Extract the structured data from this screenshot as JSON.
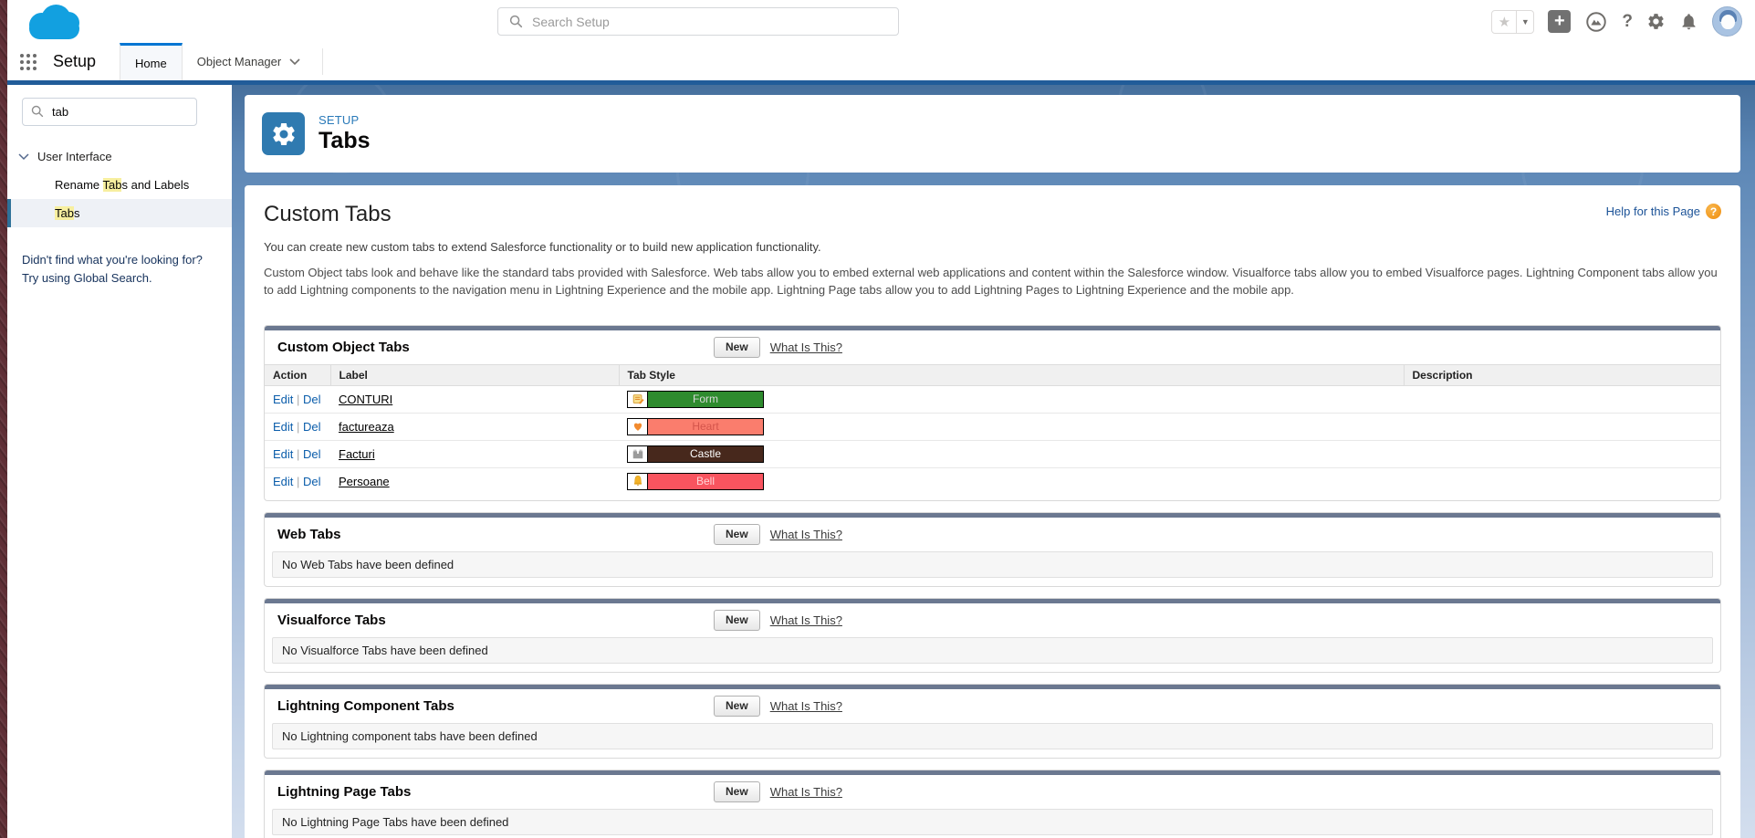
{
  "global_header": {
    "search": {
      "placeholder": "Search Setup"
    },
    "icons": [
      "salesforce-cloud-logo",
      "favorites-star-icon",
      "favorites-caret-icon",
      "add-icon",
      "trailhead-icon",
      "help-icon",
      "setup-gear-icon",
      "notifications-bell-icon",
      "user-avatar"
    ]
  },
  "nav": {
    "app_name": "Setup",
    "tabs": {
      "home": "Home",
      "object_manager": "Object Manager"
    }
  },
  "sidebar": {
    "search_value": "tab",
    "tree": {
      "section_label": "User Interface",
      "items": [
        {
          "pre": "Rename ",
          "hl": "Tab",
          "post": "s and Labels",
          "selected": false
        },
        {
          "pre": "",
          "hl": "Tab",
          "post": "s",
          "selected": true
        }
      ]
    },
    "hint": "Didn't find what you're looking for? Try using Global Search."
  },
  "page_header": {
    "eyebrow": "SETUP",
    "title": "Tabs"
  },
  "content": {
    "help_link": "Help for this Page",
    "help_badge": "?",
    "title": "Custom Tabs",
    "intro1": "You can create new custom tabs to extend Salesforce functionality or to build new application functionality.",
    "intro2": "Custom Object tabs look and behave like the standard tabs provided with Salesforce. Web tabs allow you to embed external web applications and content within the Salesforce window. Visualforce tabs allow you to embed Visualforce pages. Lightning Component tabs allow you to add Lightning components to the navigation menu in Lightning Experience and the mobile app. Lightning Page tabs allow you to add Lightning Pages to Lightning Experience and the mobile app.",
    "sections": [
      {
        "title": "Custom Object Tabs",
        "new_label": "New",
        "what_label": "What Is This?",
        "type": "table",
        "table": {
          "headers": [
            "Action",
            "Label",
            "Tab Style",
            "Description"
          ],
          "rows": [
            {
              "actions": [
                "Edit",
                "Del"
              ],
              "label": "CONTURI",
              "style_name": "Form",
              "style_color": "#2e8b2e",
              "style_text_color": "#d9d9d9",
              "icon": "form-icon",
              "description": ""
            },
            {
              "actions": [
                "Edit",
                "Del"
              ],
              "label": "factureaza",
              "style_name": "Heart",
              "style_color": "#fa7d6d",
              "style_text_color": "#d4544b",
              "icon": "heart-icon",
              "description": ""
            },
            {
              "actions": [
                "Edit",
                "Del"
              ],
              "label": "Facturi",
              "style_name": "Castle",
              "style_color": "#47281c",
              "style_text_color": "#ffffff",
              "icon": "castle-icon",
              "description": ""
            },
            {
              "actions": [
                "Edit",
                "Del"
              ],
              "label": "Persoane",
              "style_name": "Bell",
              "style_color": "#f9545f",
              "style_text_color": "#ffd4d6",
              "icon": "bell-icon",
              "description": ""
            }
          ]
        }
      },
      {
        "title": "Web Tabs",
        "new_label": "New",
        "what_label": "What Is This?",
        "type": "empty",
        "empty_text": "No Web Tabs have been defined"
      },
      {
        "title": "Visualforce Tabs",
        "new_label": "New",
        "what_label": "What Is This?",
        "type": "empty",
        "empty_text": "No Visualforce Tabs have been defined"
      },
      {
        "title": "Lightning Component Tabs",
        "new_label": "New",
        "what_label": "What Is This?",
        "type": "empty",
        "empty_text": "No Lightning component tabs have been defined"
      },
      {
        "title": "Lightning Page Tabs",
        "new_label": "New",
        "what_label": "What Is This?",
        "type": "empty",
        "empty_text": "No Lightning Page Tabs have been defined"
      }
    ]
  },
  "colors": {
    "nav_underline": "#215c99",
    "section_bar": "#6b7890",
    "header_tile": "#2f7ab0",
    "tab_active_border": "#0176d3",
    "highlight": "#f7ef9f",
    "selected_item_border": "#2e7199"
  }
}
